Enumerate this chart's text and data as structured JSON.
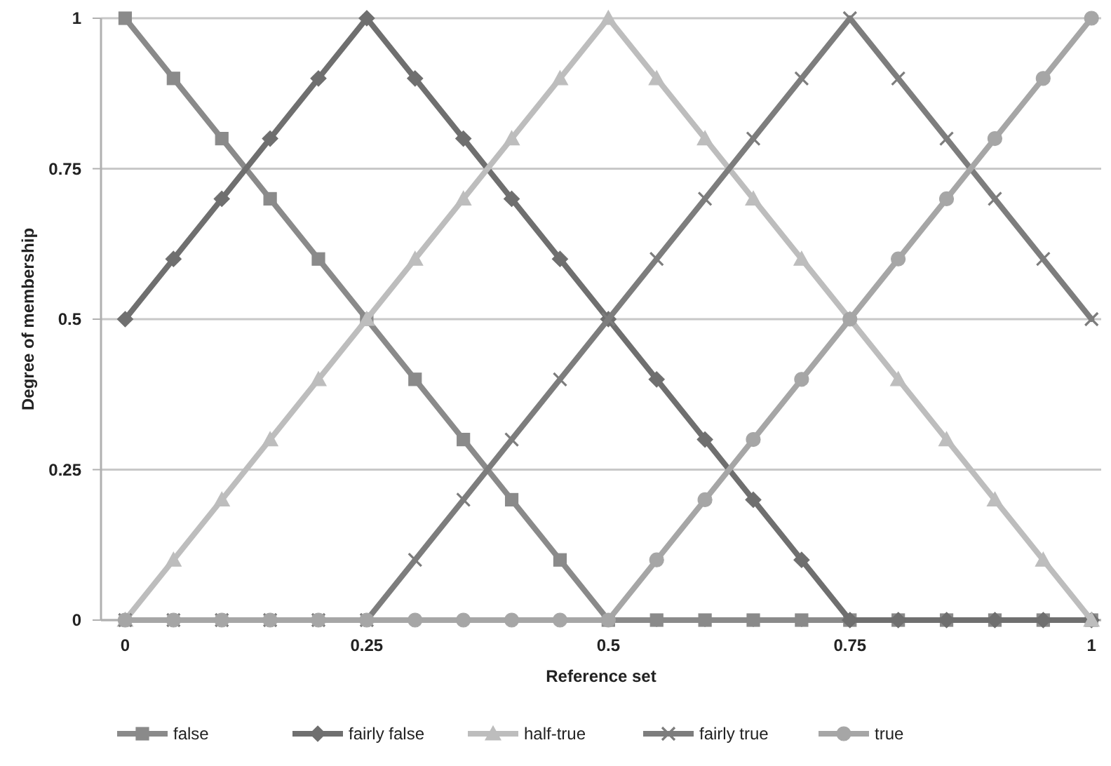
{
  "chart_data": {
    "type": "line",
    "xlabel": "Reference set",
    "ylabel": "Degree of membership",
    "x": [
      0,
      0.05,
      0.1,
      0.15,
      0.2,
      0.25,
      0.3,
      0.35,
      0.4,
      0.45,
      0.5,
      0.55,
      0.6,
      0.65,
      0.7,
      0.75,
      0.8,
      0.85,
      0.9,
      0.95,
      1
    ],
    "xlim": [
      -0.025,
      1.01
    ],
    "xticks": [
      0,
      {
        "value": 0.05,
        "label": null
      },
      {
        "value": 0.1,
        "label": null
      },
      {
        "value": 0.15,
        "label": null
      },
      {
        "value": 0.2,
        "label": null
      },
      0.25,
      {
        "value": 0.3,
        "label": null
      },
      {
        "value": 0.35,
        "label": null
      },
      {
        "value": 0.4,
        "label": null
      },
      {
        "value": 0.45,
        "label": null
      },
      0.5,
      {
        "value": 0.55,
        "label": null
      },
      {
        "value": 0.6,
        "label": null
      },
      {
        "value": 0.65,
        "label": null
      },
      {
        "value": 0.7,
        "label": null
      },
      0.75,
      {
        "value": 0.8,
        "label": null
      },
      {
        "value": 0.85,
        "label": null
      },
      {
        "value": 0.9,
        "label": null
      },
      {
        "value": 0.95,
        "label": null
      },
      1
    ],
    "ylim": [
      0,
      1
    ],
    "yticks": [
      0,
      0.25,
      0.5,
      0.75,
      1
    ],
    "grid": "y",
    "legend": "bottom",
    "series": [
      {
        "name": "false",
        "color": "#8a8a8a",
        "marker": "square",
        "values": [
          1,
          0.9,
          0.8,
          0.7,
          0.6,
          0.5,
          0.4,
          0.3,
          0.2,
          0.1,
          0,
          0,
          0,
          0,
          0,
          0,
          0,
          0,
          0,
          0,
          0
        ]
      },
      {
        "name": "fairly false",
        "color": "#6f6f6f",
        "marker": "diamond",
        "values": [
          0.5,
          0.6,
          0.7,
          0.8,
          0.9,
          1,
          0.9,
          0.8,
          0.7,
          0.6,
          0.5,
          0.4,
          0.3,
          0.2,
          0.1,
          0,
          0,
          0,
          0,
          0,
          0
        ]
      },
      {
        "name": "half-true",
        "color": "#bdbdbd",
        "marker": "triangle",
        "values": [
          0,
          0.1,
          0.2,
          0.3,
          0.4,
          0.5,
          0.6,
          0.7,
          0.8,
          0.9,
          1,
          0.9,
          0.8,
          0.7,
          0.6,
          0.5,
          0.4,
          0.3,
          0.2,
          0.1,
          0
        ]
      },
      {
        "name": "fairly true",
        "color": "#7d7d7d",
        "marker": "cross",
        "values": [
          0,
          0,
          0,
          0,
          0,
          0,
          0.1,
          0.2,
          0.3,
          0.4,
          0.5,
          0.6,
          0.7,
          0.8,
          0.9,
          1,
          0.9,
          0.8,
          0.7,
          0.6,
          0.5
        ]
      },
      {
        "name": "true",
        "color": "#a6a6a6",
        "marker": "circle",
        "values": [
          0,
          0,
          0,
          0,
          0,
          0,
          0,
          0,
          0,
          0,
          0,
          0.1,
          0.2,
          0.3,
          0.4,
          0.5,
          0.6,
          0.7,
          0.8,
          0.9,
          1
        ]
      }
    ]
  }
}
